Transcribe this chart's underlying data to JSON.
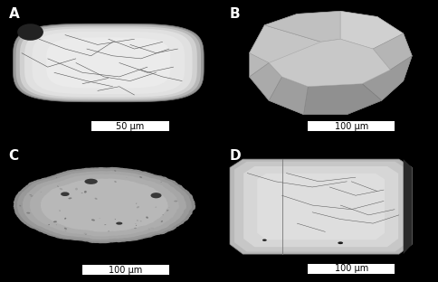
{
  "background_color": "#000000",
  "figsize": [
    4.84,
    3.12
  ],
  "dpi": 100,
  "label_fontsize": 11,
  "scalebar_fontsize": 7,
  "panels": {
    "A": {
      "grain_color": "#d8d8d8",
      "grain_shadow": "#a0a0a0",
      "crack_color": "#555555",
      "scalebar_text": "50 μm"
    },
    "B": {
      "grain_color_light": "#cccccc",
      "grain_color_dark": "#888888",
      "facet_color": "#aaaaaa",
      "scalebar_text": "100 μm"
    },
    "C": {
      "grain_color": "#b0b0b0",
      "inclusion_color": "#444444",
      "scalebar_text": "100 μm"
    },
    "D": {
      "grain_color": "#d0d0d0",
      "crack_color": "#555555",
      "scalebar_text": "100 μm"
    }
  }
}
